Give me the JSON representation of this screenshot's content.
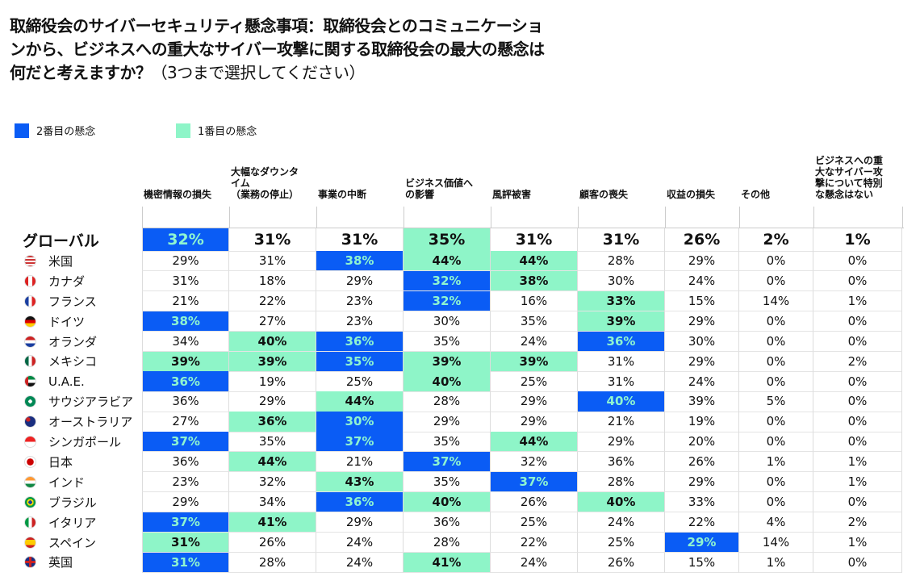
{
  "title": {
    "line1": "取締役会のサイバーセキュリティ懸念事項：取締役会とのコミュニケーショ",
    "line2": "ンから、ビジネスへの重大なサイバー攻撃に関する取締役会の最大の懸念は",
    "line3": "何だと考えますか？",
    "line3_sub": "（3つまで選択してください）"
  },
  "legend": [
    {
      "label": "2番目の懸念",
      "color": "#0a5cf5"
    },
    {
      "label": "1番目の懸念",
      "color": "#8ef5c8"
    }
  ],
  "colors": {
    "second": "#0a5cf5",
    "first": "#8ef5c8",
    "second_text": "#8ff5d0"
  },
  "chart_data": {
    "type": "table",
    "columns": [
      "機密情報の損失",
      "大幅なダウンタイム（業務の停止）",
      "事業の中断",
      "ビジネス価値への影響",
      "風評被害",
      "顧客の喪失",
      "収益の損失",
      "その他",
      "ビジネスへの重大なサイバー攻撃について特別な懸念はない"
    ],
    "column_display": [
      [
        "機密情報の損失"
      ],
      [
        "大幅なダウンタ",
        "イム",
        "（業務の停止）"
      ],
      [
        "事業の中断"
      ],
      [
        "ビジネス価値へ",
        "の影響"
      ],
      [
        "風評被害"
      ],
      [
        "顧客の喪失"
      ],
      [
        "収益の損失"
      ],
      [
        "その他"
      ],
      [
        "ビジネスへの重",
        "大なサイバー攻",
        "撃について特別",
        "な懸念はない"
      ]
    ],
    "highlight_key": {
      "b": "2番目の懸念",
      "g": "1番目の懸念"
    },
    "rows": [
      {
        "label": "グローバル",
        "flag": "globe",
        "values": [
          "32%",
          "31%",
          "31%",
          "35%",
          "31%",
          "31%",
          "26%",
          "2%",
          "1%"
        ],
        "marks": [
          "b",
          "",
          "",
          "g",
          "",
          "",
          "",
          "",
          ""
        ]
      },
      {
        "label": "米国",
        "flag": "us-flag-icon",
        "values": [
          "29%",
          "31%",
          "38%",
          "44%",
          "44%",
          "28%",
          "29%",
          "0%",
          "0%"
        ],
        "marks": [
          "",
          "",
          "b",
          "g",
          "g",
          "",
          "",
          "",
          ""
        ]
      },
      {
        "label": "カナダ",
        "flag": "canada-flag-icon",
        "values": [
          "31%",
          "18%",
          "29%",
          "32%",
          "38%",
          "30%",
          "24%",
          "0%",
          "0%"
        ],
        "marks": [
          "",
          "",
          "",
          "b",
          "g",
          "",
          "",
          "",
          ""
        ]
      },
      {
        "label": "フランス",
        "flag": "france-flag-icon",
        "values": [
          "21%",
          "22%",
          "23%",
          "32%",
          "16%",
          "33%",
          "15%",
          "14%",
          "1%"
        ],
        "marks": [
          "",
          "",
          "",
          "b",
          "",
          "g",
          "",
          "",
          ""
        ]
      },
      {
        "label": "ドイツ",
        "flag": "germany-flag-icon",
        "values": [
          "38%",
          "27%",
          "23%",
          "30%",
          "35%",
          "39%",
          "29%",
          "0%",
          "0%"
        ],
        "marks": [
          "b",
          "",
          "",
          "",
          "",
          "g",
          "",
          "",
          ""
        ]
      },
      {
        "label": "オランダ",
        "flag": "netherlands-flag-icon",
        "values": [
          "34%",
          "40%",
          "36%",
          "35%",
          "24%",
          "36%",
          "30%",
          "0%",
          "0%"
        ],
        "marks": [
          "",
          "g",
          "b",
          "",
          "",
          "b",
          "",
          "",
          ""
        ]
      },
      {
        "label": "メキシコ",
        "flag": "mexico-flag-icon",
        "values": [
          "39%",
          "39%",
          "35%",
          "39%",
          "39%",
          "31%",
          "29%",
          "0%",
          "2%"
        ],
        "marks": [
          "g",
          "g",
          "b",
          "g",
          "g",
          "",
          "",
          "",
          ""
        ]
      },
      {
        "label": "U.A.E.",
        "flag": "uae-flag-icon",
        "values": [
          "36%",
          "19%",
          "25%",
          "40%",
          "25%",
          "31%",
          "24%",
          "0%",
          "0%"
        ],
        "marks": [
          "b",
          "",
          "",
          "g",
          "",
          "",
          "",
          "",
          ""
        ]
      },
      {
        "label": "サウジアラビア",
        "flag": "saudi-flag-icon",
        "values": [
          "36%",
          "29%",
          "44%",
          "28%",
          "29%",
          "40%",
          "39%",
          "5%",
          "0%"
        ],
        "marks": [
          "",
          "",
          "g",
          "",
          "",
          "b",
          "",
          "",
          ""
        ]
      },
      {
        "label": "オーストラリア",
        "flag": "australia-flag-icon",
        "values": [
          "27%",
          "36%",
          "30%",
          "29%",
          "29%",
          "21%",
          "19%",
          "0%",
          "0%"
        ],
        "marks": [
          "",
          "g",
          "b",
          "",
          "",
          "",
          "",
          "",
          ""
        ]
      },
      {
        "label": "シンガポール",
        "flag": "singapore-flag-icon",
        "values": [
          "37%",
          "35%",
          "37%",
          "35%",
          "44%",
          "29%",
          "20%",
          "0%",
          "0%"
        ],
        "marks": [
          "b",
          "",
          "b",
          "",
          "g",
          "",
          "",
          "",
          ""
        ]
      },
      {
        "label": "日本",
        "flag": "japan-flag-icon",
        "values": [
          "36%",
          "44%",
          "21%",
          "37%",
          "32%",
          "36%",
          "26%",
          "1%",
          "1%"
        ],
        "marks": [
          "",
          "g",
          "",
          "b",
          "",
          "",
          "",
          "",
          ""
        ]
      },
      {
        "label": "インド",
        "flag": "india-flag-icon",
        "values": [
          "23%",
          "32%",
          "43%",
          "35%",
          "37%",
          "28%",
          "29%",
          "0%",
          "1%"
        ],
        "marks": [
          "",
          "",
          "g",
          "",
          "b",
          "",
          "",
          "",
          ""
        ]
      },
      {
        "label": "ブラジル",
        "flag": "brazil-flag-icon",
        "values": [
          "29%",
          "34%",
          "36%",
          "40%",
          "26%",
          "40%",
          "33%",
          "0%",
          "0%"
        ],
        "marks": [
          "",
          "",
          "b",
          "g",
          "",
          "g",
          "",
          "",
          ""
        ]
      },
      {
        "label": "イタリア",
        "flag": "italy-flag-icon",
        "values": [
          "37%",
          "41%",
          "29%",
          "36%",
          "25%",
          "24%",
          "22%",
          "4%",
          "2%"
        ],
        "marks": [
          "b",
          "g",
          "",
          "",
          "",
          "",
          "",
          "",
          ""
        ]
      },
      {
        "label": "スペイン",
        "flag": "spain-flag-icon",
        "values": [
          "31%",
          "26%",
          "24%",
          "28%",
          "22%",
          "25%",
          "29%",
          "14%",
          "1%"
        ],
        "marks": [
          "g",
          "",
          "",
          "",
          "",
          "",
          "b",
          "",
          ""
        ]
      },
      {
        "label": "英国",
        "flag": "uk-flag-icon",
        "values": [
          "31%",
          "28%",
          "24%",
          "41%",
          "24%",
          "26%",
          "15%",
          "1%",
          "0%"
        ],
        "marks": [
          "b",
          "",
          "",
          "g",
          "",
          "",
          "",
          "",
          ""
        ]
      }
    ]
  }
}
